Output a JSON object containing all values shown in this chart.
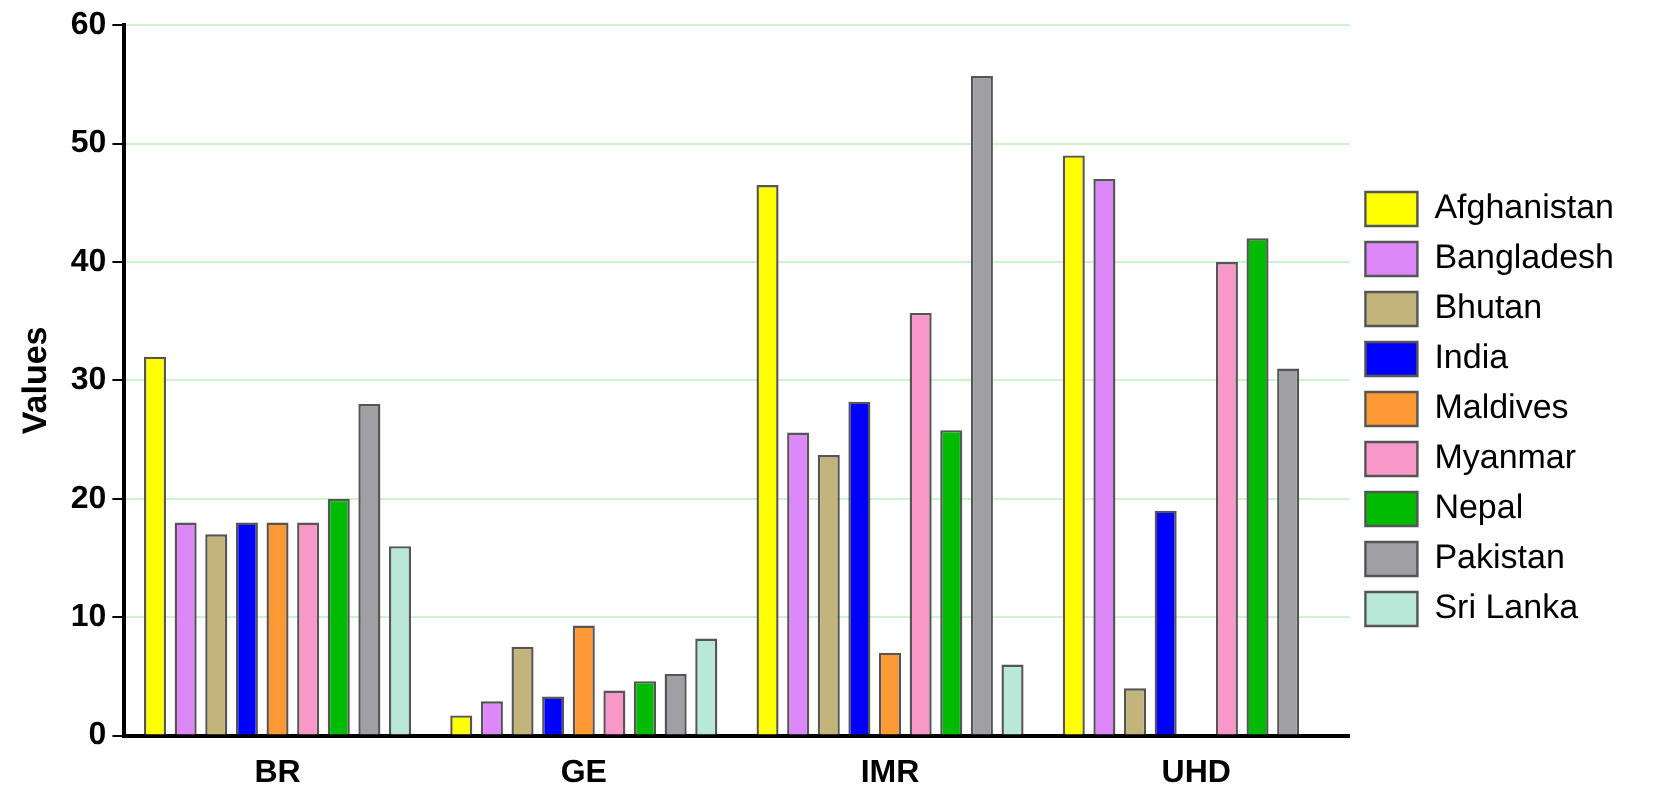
{
  "chart_data": {
    "type": "bar",
    "ylabel": "Values",
    "categories": [
      "BR",
      "GE",
      "IMR",
      "UHD"
    ],
    "series": [
      {
        "name": "Afghanistan",
        "color": "#ffff00",
        "values": [
          32,
          1.7,
          46.5,
          49
        ]
      },
      {
        "name": "Bangladesh",
        "color": "#dd88f8",
        "values": [
          18,
          2.9,
          25.6,
          47
        ]
      },
      {
        "name": "Bhutan",
        "color": "#c2b47a",
        "values": [
          17,
          7.5,
          23.7,
          4
        ]
      },
      {
        "name": "India",
        "color": "#0000ff",
        "values": [
          18,
          3.3,
          28.2,
          19
        ]
      },
      {
        "name": "Maldives",
        "color": "#ff9933",
        "values": [
          18,
          9.3,
          7,
          null
        ]
      },
      {
        "name": "Myanmar",
        "color": "#f898c8",
        "values": [
          18,
          3.8,
          35.7,
          40
        ]
      },
      {
        "name": "Nepal",
        "color": "#00bb00",
        "values": [
          20,
          4.6,
          25.8,
          42
        ]
      },
      {
        "name": "Pakistan",
        "color": "#a0a0a4",
        "values": [
          28,
          5.2,
          55.7,
          31
        ]
      },
      {
        "name": "Sri Lanka",
        "color": "#b8e8d8",
        "values": [
          16,
          8.2,
          6,
          null
        ]
      }
    ],
    "ylim": [
      0,
      60
    ],
    "yticks": [
      0,
      10,
      20,
      30,
      40,
      50,
      60
    ],
    "grid": "y",
    "legend": "right"
  }
}
